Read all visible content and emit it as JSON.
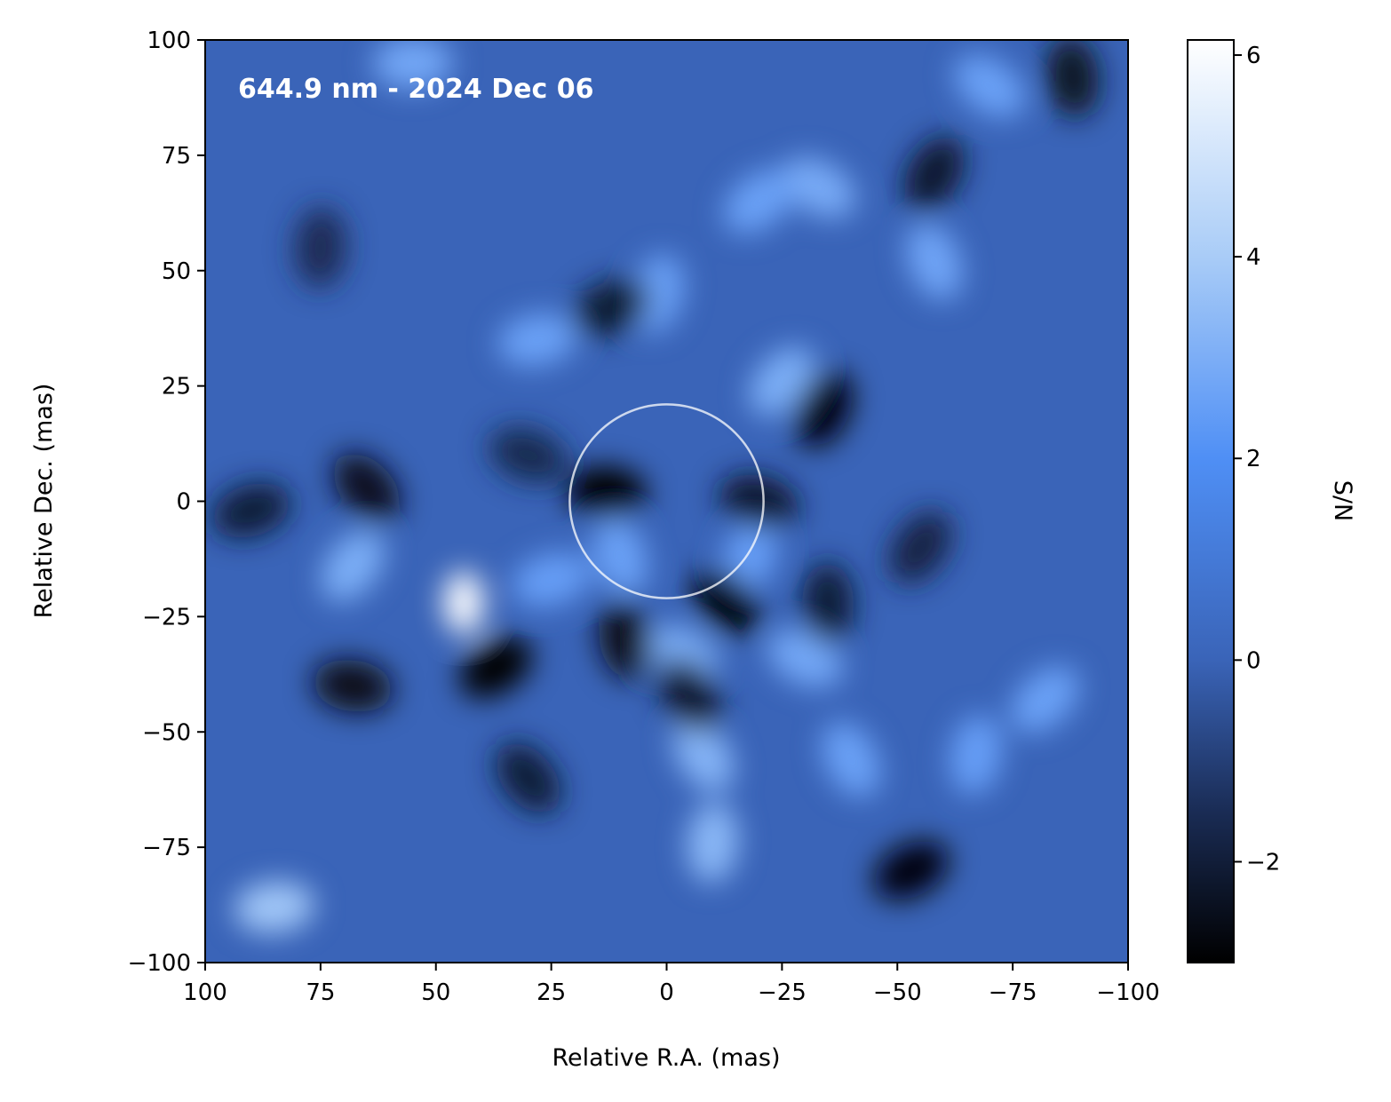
{
  "chart_data": {
    "type": "heatmap",
    "annotation": "644.9 nm - 2024 Dec 06",
    "xlabel": "Relative R.A. (mas)",
    "ylabel": "Relative Dec. (mas)",
    "colorbar_label": "S/N",
    "xlim": [
      100,
      -100
    ],
    "ylim": [
      -100,
      100
    ],
    "x_ticks": [
      100,
      75,
      50,
      25,
      0,
      -25,
      -50,
      -75,
      -100
    ],
    "x_tick_labels": [
      "100",
      "75",
      "50",
      "25",
      "0",
      "−25",
      "−50",
      "−75",
      "−100"
    ],
    "y_ticks": [
      100,
      75,
      50,
      25,
      0,
      -25,
      -50,
      -75,
      -100
    ],
    "y_tick_labels": [
      "100",
      "75",
      "50",
      "25",
      "0",
      "−25",
      "−50",
      "−75",
      "−100"
    ],
    "colorbar_range": [
      -3.0,
      6.15
    ],
    "colorbar_ticks": [
      6,
      4,
      2,
      0,
      -2
    ],
    "colorbar_tick_labels": [
      "6",
      "4",
      "2",
      "0",
      "−2"
    ],
    "colormap": [
      {
        "value": -3.0,
        "color": "#000000"
      },
      {
        "value": -1.5,
        "color": "#1a2c55"
      },
      {
        "value": 0.0,
        "color": "#3a64b8"
      },
      {
        "value": 2.0,
        "color": "#4f8ff5"
      },
      {
        "value": 4.0,
        "color": "#a9ccf7"
      },
      {
        "value": 6.15,
        "color": "#ffffff"
      }
    ],
    "circle": {
      "center": [
        0,
        0
      ],
      "radius_mas": 21,
      "color": "#ffffff"
    },
    "features": [
      {
        "x": 44,
        "y": -22,
        "sn": 6.0
      },
      {
        "x": 68,
        "y": -14,
        "sn": 3.0
      },
      {
        "x": 25,
        "y": -17,
        "sn": 2.5
      },
      {
        "x": -3,
        "y": -33,
        "sn": 3.0
      },
      {
        "x": -8,
        "y": -55,
        "sn": 3.2
      },
      {
        "x": -10,
        "y": -74,
        "sn": 3.3
      },
      {
        "x": -25,
        "y": 26,
        "sn": 3.0
      },
      {
        "x": 28,
        "y": 35,
        "sn": 2.6
      },
      {
        "x": -30,
        "y": -34,
        "sn": 2.8
      },
      {
        "x": -40,
        "y": -56,
        "sn": 2.6
      },
      {
        "x": -67,
        "y": -55,
        "sn": 2.5
      },
      {
        "x": -82,
        "y": -43,
        "sn": 2.6
      },
      {
        "x": 85,
        "y": -88,
        "sn": 3.8
      },
      {
        "x": -33,
        "y": 68,
        "sn": 2.9
      },
      {
        "x": -58,
        "y": 52,
        "sn": 2.7
      },
      {
        "x": 2,
        "y": 45,
        "sn": 2.6
      },
      {
        "x": -20,
        "y": 65,
        "sn": 2.6
      },
      {
        "x": 55,
        "y": 95,
        "sn": 2.8
      },
      {
        "x": -70,
        "y": 90,
        "sn": 2.6
      },
      {
        "x": 10,
        "y": -12,
        "sn": 2.6
      },
      {
        "x": -18,
        "y": -12,
        "sn": 2.5
      },
      {
        "x": 37,
        "y": -36,
        "sn": -3.0
      },
      {
        "x": 13,
        "y": 2,
        "sn": -3.0
      },
      {
        "x": -13,
        "y": -22,
        "sn": -3.0
      },
      {
        "x": 9,
        "y": -30,
        "sn": -2.6
      },
      {
        "x": -34,
        "y": 20,
        "sn": -2.8
      },
      {
        "x": -53,
        "y": -80,
        "sn": -2.8
      },
      {
        "x": 68,
        "y": -40,
        "sn": -2.6
      },
      {
        "x": 65,
        "y": 3,
        "sn": -2.5
      },
      {
        "x": -88,
        "y": 92,
        "sn": -2.4
      },
      {
        "x": -58,
        "y": 71,
        "sn": -2.2
      },
      {
        "x": 12,
        "y": 42,
        "sn": -2.1
      },
      {
        "x": -20,
        "y": 0,
        "sn": -2.2
      },
      {
        "x": 30,
        "y": -60,
        "sn": -2.0
      },
      {
        "x": -35,
        "y": -22,
        "sn": -2.0
      },
      {
        "x": -55,
        "y": -10,
        "sn": -1.8
      },
      {
        "x": 90,
        "y": -2,
        "sn": -2.0
      },
      {
        "x": 30,
        "y": 10,
        "sn": -1.6
      },
      {
        "x": -5,
        "y": -42,
        "sn": -2.2
      },
      {
        "x": 75,
        "y": 55,
        "sn": -1.5
      }
    ]
  }
}
